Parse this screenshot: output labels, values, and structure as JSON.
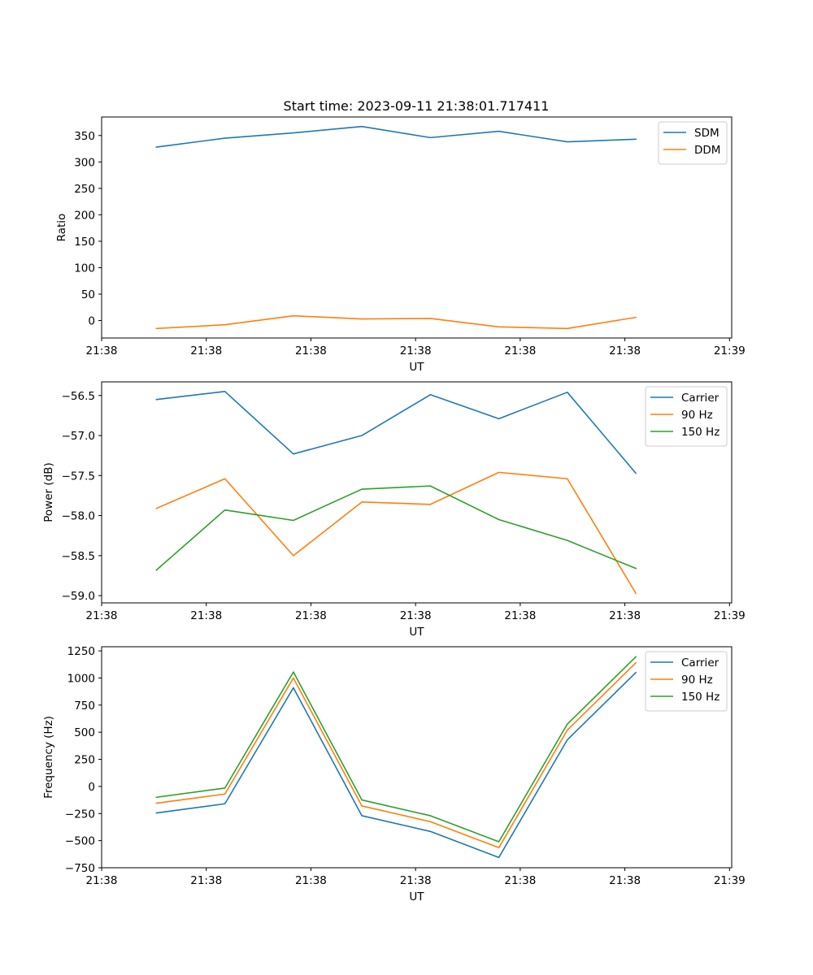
{
  "figure_title": "Start time: 2023-09-11 21:38:01.717411",
  "chart_data": [
    {
      "type": "line",
      "title": "Start time: 2023-09-11 21:38:01.717411",
      "xlabel": "UT",
      "ylabel": "Ratio",
      "x": [
        1,
        2,
        3,
        4,
        5,
        6,
        7,
        8
      ],
      "xlim": [
        0.2,
        9.4
      ],
      "xticks": [
        0.2,
        1.728,
        3.256,
        4.784,
        6.312,
        7.84,
        9.368
      ],
      "xtick_labels": [
        "21:38",
        "21:38",
        "21:38",
        "21:38",
        "21:38",
        "21:38",
        "21:39"
      ],
      "ylim": [
        -33,
        385
      ],
      "yticks": [
        0,
        50,
        100,
        150,
        200,
        250,
        300,
        350
      ],
      "ytick_labels": [
        "0",
        "50",
        "100",
        "150",
        "200",
        "250",
        "300",
        "350"
      ],
      "legend_position": "top-right",
      "series": [
        {
          "name": "SDM",
          "color": "#1f77b4",
          "values": [
            328,
            345,
            355,
            367,
            346,
            358,
            338,
            343
          ]
        },
        {
          "name": "DDM",
          "color": "#ff7f0e",
          "values": [
            -15,
            -8,
            9,
            3,
            4,
            -12,
            -15,
            6
          ]
        }
      ]
    },
    {
      "type": "line",
      "title": "",
      "xlabel": "UT",
      "ylabel": "Power (dB)",
      "x": [
        1,
        2,
        3,
        4,
        5,
        6,
        7,
        8
      ],
      "xlim": [
        0.2,
        9.4
      ],
      "xticks": [
        0.2,
        1.728,
        3.256,
        4.784,
        6.312,
        7.84,
        9.368
      ],
      "xtick_labels": [
        "21:38",
        "21:38",
        "21:38",
        "21:38",
        "21:38",
        "21:38",
        "21:39"
      ],
      "ylim": [
        -59.09,
        -56.33
      ],
      "yticks": [
        -59.0,
        -58.5,
        -58.0,
        -57.5,
        -57.0,
        -56.5
      ],
      "ytick_labels": [
        "−59.0",
        "−58.5",
        "−58.0",
        "−57.5",
        "−57.0",
        "−56.5"
      ],
      "legend_position": "top-right",
      "series": [
        {
          "name": "Carrier",
          "color": "#1f77b4",
          "values": [
            -56.55,
            -56.45,
            -57.23,
            -57.0,
            -56.49,
            -56.79,
            -56.46,
            -57.47
          ]
        },
        {
          "name": "90 Hz",
          "color": "#ff7f0e",
          "values": [
            -57.91,
            -57.54,
            -58.5,
            -57.83,
            -57.86,
            -57.46,
            -57.54,
            -58.97
          ]
        },
        {
          "name": "150 Hz",
          "color": "#2ca02c",
          "values": [
            -58.68,
            -57.93,
            -58.06,
            -57.67,
            -57.63,
            -58.05,
            -58.31,
            -58.66
          ]
        }
      ]
    },
    {
      "type": "line",
      "title": "",
      "xlabel": "UT",
      "ylabel": "Frequency (Hz)",
      "x": [
        1,
        2,
        3,
        4,
        5,
        6,
        7,
        8
      ],
      "xlim": [
        0.2,
        9.4
      ],
      "xticks": [
        0.2,
        1.728,
        3.256,
        4.784,
        6.312,
        7.84,
        9.368
      ],
      "xtick_labels": [
        "21:38",
        "21:38",
        "21:38",
        "21:38",
        "21:38",
        "21:38",
        "21:39"
      ],
      "ylim": [
        -750,
        1288
      ],
      "yticks": [
        -750,
        -500,
        -250,
        0,
        250,
        500,
        750,
        1000,
        1250
      ],
      "ytick_labels": [
        "−750",
        "−500",
        "−250",
        "0",
        "250",
        "500",
        "750",
        "1000",
        "1250"
      ],
      "legend_position": "top-right",
      "series": [
        {
          "name": "Carrier",
          "color": "#1f77b4",
          "values": [
            -245,
            -160,
            910,
            -270,
            -415,
            -655,
            430,
            1050
          ]
        },
        {
          "name": "90 Hz",
          "color": "#ff7f0e",
          "values": [
            -155,
            -70,
            1000,
            -180,
            -325,
            -565,
            520,
            1140
          ]
        },
        {
          "name": "150 Hz",
          "color": "#2ca02c",
          "values": [
            -100,
            -15,
            1055,
            -125,
            -270,
            -510,
            575,
            1195
          ]
        }
      ]
    }
  ]
}
